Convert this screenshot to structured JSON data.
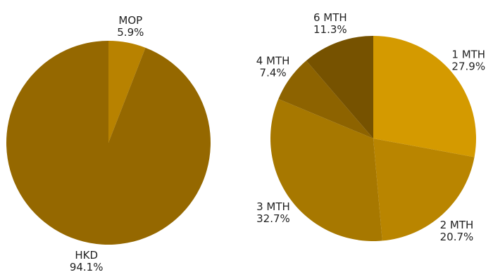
{
  "chart_data": [
    {
      "type": "pie",
      "start_angle_deg": 0,
      "direction": "clockwise",
      "slices": [
        {
          "label": "MOP",
          "value": 5.9,
          "value_label": "5.9%",
          "color": "#b88200"
        },
        {
          "label": "HKD",
          "value": 94.1,
          "value_label": "94.1%",
          "color": "#956800"
        }
      ]
    },
    {
      "type": "pie",
      "start_angle_deg": 0,
      "direction": "clockwise",
      "slices": [
        {
          "label": "1 MTH",
          "value": 27.9,
          "value_label": "27.9%",
          "color": "#d49a00"
        },
        {
          "label": "2 MTH",
          "value": 20.7,
          "value_label": "20.7%",
          "color": "#b98500"
        },
        {
          "label": "3 MTH",
          "value": 32.7,
          "value_label": "32.7%",
          "color": "#a77800"
        },
        {
          "label": "4 MTH",
          "value": 7.4,
          "value_label": "7.4%",
          "color": "#8d6300"
        },
        {
          "label": "6 MTH",
          "value": 11.3,
          "value_label": "11.3%",
          "color": "#765200"
        }
      ]
    }
  ]
}
